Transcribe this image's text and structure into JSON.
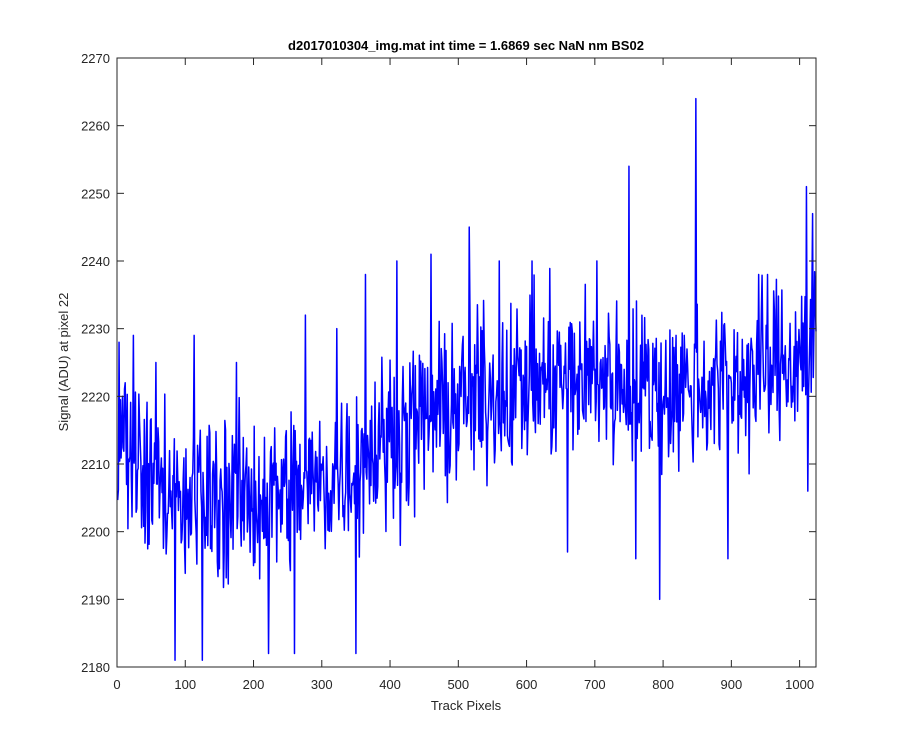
{
  "chart_data": {
    "type": "line",
    "title": "d2017010304_img.mat int time = 1.6869 sec  NaN nm BS02",
    "xlabel": "Track Pixels",
    "ylabel": "Signal (ADU) at pixel 22",
    "xlim": [
      0,
      1024
    ],
    "ylim": [
      2180,
      2270
    ],
    "x_ticks": [
      0,
      100,
      200,
      300,
      400,
      500,
      600,
      700,
      800,
      900,
      1000
    ],
    "y_ticks": [
      2180,
      2190,
      2200,
      2210,
      2220,
      2230,
      2240,
      2250,
      2260,
      2270
    ],
    "grid": false,
    "box": true,
    "series": [
      {
        "color": "#0000ff",
        "x_start": 1,
        "x_step": 1,
        "trend": {
          "x": [
            1,
            100,
            200,
            300,
            400,
            500,
            600,
            700,
            800,
            900,
            1000,
            1024
          ],
          "y": [
            2211,
            2205,
            2205,
            2207,
            2214,
            2219,
            2222,
            2223,
            2221,
            2222,
            2226,
            2230
          ]
        },
        "noise_amplitude": 9,
        "peaks": [
          {
            "x": 3,
            "y": 2228
          },
          {
            "x": 12,
            "y": 2222
          },
          {
            "x": 24,
            "y": 2229
          },
          {
            "x": 57,
            "y": 2225
          },
          {
            "x": 85,
            "y": 2181
          },
          {
            "x": 113,
            "y": 2229
          },
          {
            "x": 125,
            "y": 2181
          },
          {
            "x": 175,
            "y": 2225
          },
          {
            "x": 222,
            "y": 2182
          },
          {
            "x": 260,
            "y": 2182
          },
          {
            "x": 276,
            "y": 2232
          },
          {
            "x": 322,
            "y": 2230
          },
          {
            "x": 350,
            "y": 2182
          },
          {
            "x": 364,
            "y": 2238
          },
          {
            "x": 410,
            "y": 2240
          },
          {
            "x": 460,
            "y": 2241
          },
          {
            "x": 516,
            "y": 2245
          },
          {
            "x": 560,
            "y": 2240
          },
          {
            "x": 608,
            "y": 2240
          },
          {
            "x": 660,
            "y": 2197
          },
          {
            "x": 703,
            "y": 2240
          },
          {
            "x": 750,
            "y": 2254
          },
          {
            "x": 760,
            "y": 2196
          },
          {
            "x": 795,
            "y": 2190
          },
          {
            "x": 848,
            "y": 2264
          },
          {
            "x": 895,
            "y": 2196
          },
          {
            "x": 940,
            "y": 2238
          },
          {
            "x": 1010,
            "y": 2251
          },
          {
            "x": 1012,
            "y": 2206
          },
          {
            "x": 1019,
            "y": 2247
          }
        ]
      }
    ]
  }
}
